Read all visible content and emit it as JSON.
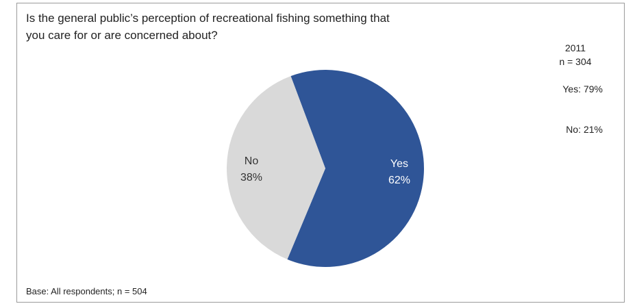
{
  "title": "Is the general public’s perception of recreational fishing something that you care for or are concerned about?",
  "comparison": {
    "year": "2011",
    "n": "n = 304",
    "yes": "Yes: 79%",
    "no": "No: 21%"
  },
  "base_note": "Base: All respondents; n = 504",
  "colors": {
    "yes": "#2f5597",
    "no": "#d9d9d9"
  },
  "chart_data": {
    "type": "pie",
    "title": "Is the general public’s perception of recreational fishing something that you care for or are concerned about?",
    "slices": [
      {
        "label": "Yes",
        "value": 62,
        "value_label": "62%",
        "color": "#2f5597"
      },
      {
        "label": "No",
        "value": 38,
        "value_label": "38%",
        "color": "#d9d9d9"
      }
    ]
  }
}
